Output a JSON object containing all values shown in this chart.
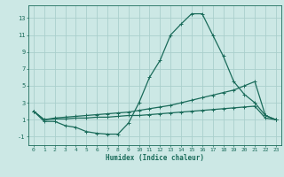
{
  "xlabel": "Humidex (Indice chaleur)",
  "xlim": [
    -0.5,
    23.5
  ],
  "ylim": [
    -2.0,
    14.5
  ],
  "xticks": [
    0,
    1,
    2,
    3,
    4,
    5,
    6,
    7,
    8,
    9,
    10,
    11,
    12,
    13,
    14,
    15,
    16,
    17,
    18,
    19,
    20,
    21,
    22,
    23
  ],
  "yticks": [
    -1,
    1,
    3,
    5,
    7,
    9,
    11,
    13
  ],
  "bg_color": "#cce8e5",
  "grid_color": "#aacfcc",
  "line_color": "#1a6b5a",
  "line1_x": [
    0,
    1,
    2,
    3,
    4,
    5,
    6,
    7,
    8,
    9,
    10,
    11,
    12,
    13,
    14,
    15,
    16,
    17,
    18,
    19,
    20,
    21,
    22,
    23
  ],
  "line1_y": [
    2.0,
    0.8,
    0.8,
    0.3,
    0.1,
    -0.4,
    -0.6,
    -0.7,
    -0.7,
    0.6,
    3.0,
    6.0,
    8.0,
    11.0,
    12.3,
    13.5,
    13.5,
    11.0,
    8.5,
    5.5,
    4.0,
    3.0,
    1.5,
    1.0
  ],
  "line2_x": [
    0,
    1,
    2,
    3,
    4,
    5,
    6,
    7,
    8,
    9,
    10,
    11,
    12,
    13,
    14,
    15,
    16,
    17,
    18,
    19,
    20,
    21,
    22,
    23
  ],
  "line2_y": [
    2.0,
    1.0,
    1.2,
    1.3,
    1.4,
    1.5,
    1.6,
    1.7,
    1.8,
    1.9,
    2.1,
    2.3,
    2.5,
    2.7,
    3.0,
    3.3,
    3.6,
    3.9,
    4.2,
    4.5,
    5.0,
    5.5,
    1.5,
    1.0
  ],
  "line3_x": [
    0,
    1,
    2,
    3,
    4,
    5,
    6,
    7,
    8,
    9,
    10,
    11,
    12,
    13,
    14,
    15,
    16,
    17,
    18,
    19,
    20,
    21,
    22,
    23
  ],
  "line3_y": [
    2.0,
    1.0,
    1.1,
    1.1,
    1.2,
    1.2,
    1.3,
    1.3,
    1.4,
    1.5,
    1.5,
    1.6,
    1.7,
    1.8,
    1.9,
    2.0,
    2.1,
    2.2,
    2.3,
    2.4,
    2.5,
    2.6,
    1.2,
    1.0
  ]
}
